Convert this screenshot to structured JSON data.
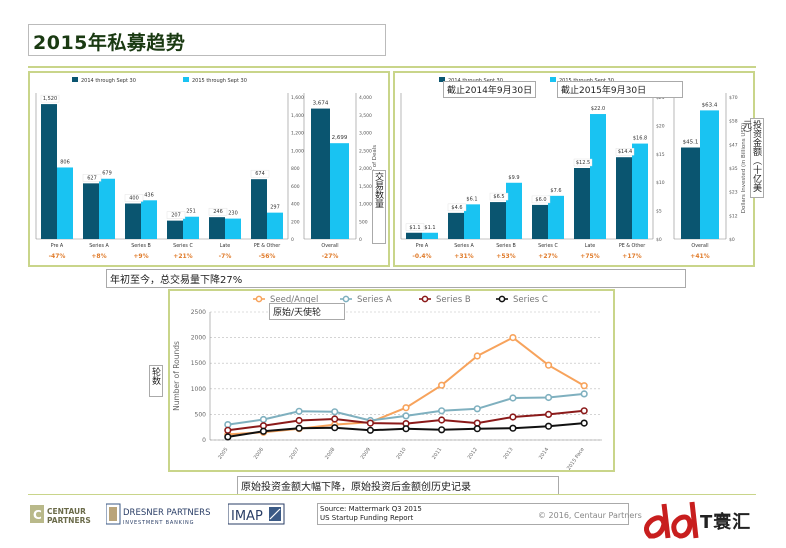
{
  "page": {
    "title": "2015年私募趋势",
    "copyright": "© 2016, Centaur Partners",
    "source_line1": "Source: Mattermark Q3 2015",
    "source_line2": "US Startup Funding Report"
  },
  "logos": {
    "centaur": "CENTAUR PARTNERS",
    "dresner_main": "DRESNER PARTNERS",
    "dresner_sub": "INVESTMENT BANKING",
    "imap": "IMAP",
    "watermark": "T寰汇"
  },
  "annotations": {
    "deals_note": "年初至今，总交易量下降27%",
    "as_of_2014": "截止2014年9月30日",
    "as_of_2015": "截止2015年9月30日",
    "seed_note": "原始/天使轮",
    "bottom_note": "原始投资金额大幅下降，原始投资后金额创历史记录",
    "deals_axis_cn": "交易数量",
    "dollars_axis_cn": "投资金额（十亿美元）",
    "rounds_axis_cn": "轮数"
  },
  "chart_data": [
    {
      "type": "bar",
      "legend": [
        "2014 through Sept 30",
        "2015 through Sept 30"
      ],
      "colors": [
        "#0a5570",
        "#19c3f2"
      ],
      "categories": [
        "Pre A",
        "Series A",
        "Series B",
        "Series C",
        "Late",
        "PE & Other"
      ],
      "series": [
        {
          "name": "2014 through Sept 30",
          "values": [
            1520,
            627,
            400,
            207,
            246,
            674
          ]
        },
        {
          "name": "2015 through Sept 30",
          "values": [
            806,
            679,
            436,
            251,
            230,
            297
          ]
        }
      ],
      "value_labels_2014": [
        "1,520",
        "627",
        "400",
        "207",
        "246",
        "674"
      ],
      "value_labels_2015": [
        "806",
        "679",
        "436",
        "251",
        "230",
        "297"
      ],
      "changes": [
        "-47%",
        "+8%",
        "+9%",
        "+21%",
        "-7%",
        "-56%"
      ],
      "ylim": [
        0,
        1600
      ],
      "yticks": [
        "0",
        "200",
        "400",
        "600",
        "800",
        "1,000",
        "1,200",
        "1,400",
        "1,600"
      ],
      "overall": {
        "category": "Overall",
        "values": [
          3674,
          2699
        ],
        "labels": [
          "3,674",
          "2,699"
        ],
        "change": "-27%",
        "ylim": [
          0,
          4000
        ],
        "yticks": [
          "0",
          "500",
          "1,000",
          "1,500",
          "2,000",
          "2,500",
          "3,000",
          "3,500",
          "4,000"
        ],
        "ylabel": "Number of Deals"
      }
    },
    {
      "type": "bar",
      "legend": [
        "2014 through Sept 30",
        "2015 through Sept 30"
      ],
      "colors": [
        "#0a5570",
        "#19c3f2"
      ],
      "categories": [
        "Pre A",
        "Series A",
        "Series B",
        "Series C",
        "Late",
        "PE & Other"
      ],
      "series": [
        {
          "name": "2014 through Sept 30",
          "values": [
            1.1,
            4.6,
            6.5,
            6.0,
            12.5,
            14.4
          ]
        },
        {
          "name": "2015 through Sept 30",
          "values": [
            1.1,
            6.1,
            9.9,
            7.6,
            22.0,
            16.8
          ]
        }
      ],
      "value_labels_2014": [
        "$1.1",
        "$4.6",
        "$6.5",
        "$6.0",
        "$12.5",
        "$14.4"
      ],
      "value_labels_2015": [
        "$1.1",
        "$6.1",
        "$9.9",
        "$7.6",
        "$22.0",
        "$16.8"
      ],
      "changes": [
        "-0.4%",
        "+31%",
        "+53%",
        "+27%",
        "+75%",
        "+17%"
      ],
      "ylim": [
        0,
        25
      ],
      "yticks": [
        "$0",
        "$5",
        "$10",
        "$15",
        "$20",
        "$25"
      ],
      "overall": {
        "category": "Overall",
        "values": [
          45.1,
          63.4
        ],
        "labels": [
          "$45.1",
          "$63.4"
        ],
        "change": "+41%",
        "ylim": [
          0,
          70
        ],
        "yticks": [
          "$0",
          "$12",
          "$23",
          "$35",
          "$47",
          "$58",
          "$70"
        ],
        "ylabel": "Dollars Invested (in Billions USD)"
      }
    },
    {
      "type": "line",
      "x": [
        "2005",
        "2006",
        "2007",
        "2008",
        "2009",
        "2010",
        "2011",
        "2012",
        "2013",
        "2014",
        "2015 Pace"
      ],
      "ylabel": "Number of Rounds",
      "ylim": [
        0,
        2500
      ],
      "yticks": [
        "0",
        "500",
        "1000",
        "1500",
        "2000",
        "2500"
      ],
      "grid": true,
      "legend_position": "top",
      "series": [
        {
          "name": "Seed/Angel",
          "color": "#f7a35c",
          "values": [
            110,
            150,
            220,
            300,
            350,
            630,
            1070,
            1640,
            2000,
            1460,
            1060
          ]
        },
        {
          "name": "Series A",
          "color": "#7fb0bf",
          "values": [
            300,
            400,
            560,
            550,
            380,
            470,
            570,
            610,
            820,
            830,
            900
          ]
        },
        {
          "name": "Series B",
          "color": "#8b1a1a",
          "values": [
            190,
            280,
            380,
            410,
            330,
            320,
            390,
            330,
            450,
            500,
            570
          ]
        },
        {
          "name": "Series C",
          "color": "#111111",
          "values": [
            60,
            170,
            230,
            240,
            190,
            220,
            200,
            220,
            230,
            270,
            330
          ]
        }
      ]
    }
  ]
}
